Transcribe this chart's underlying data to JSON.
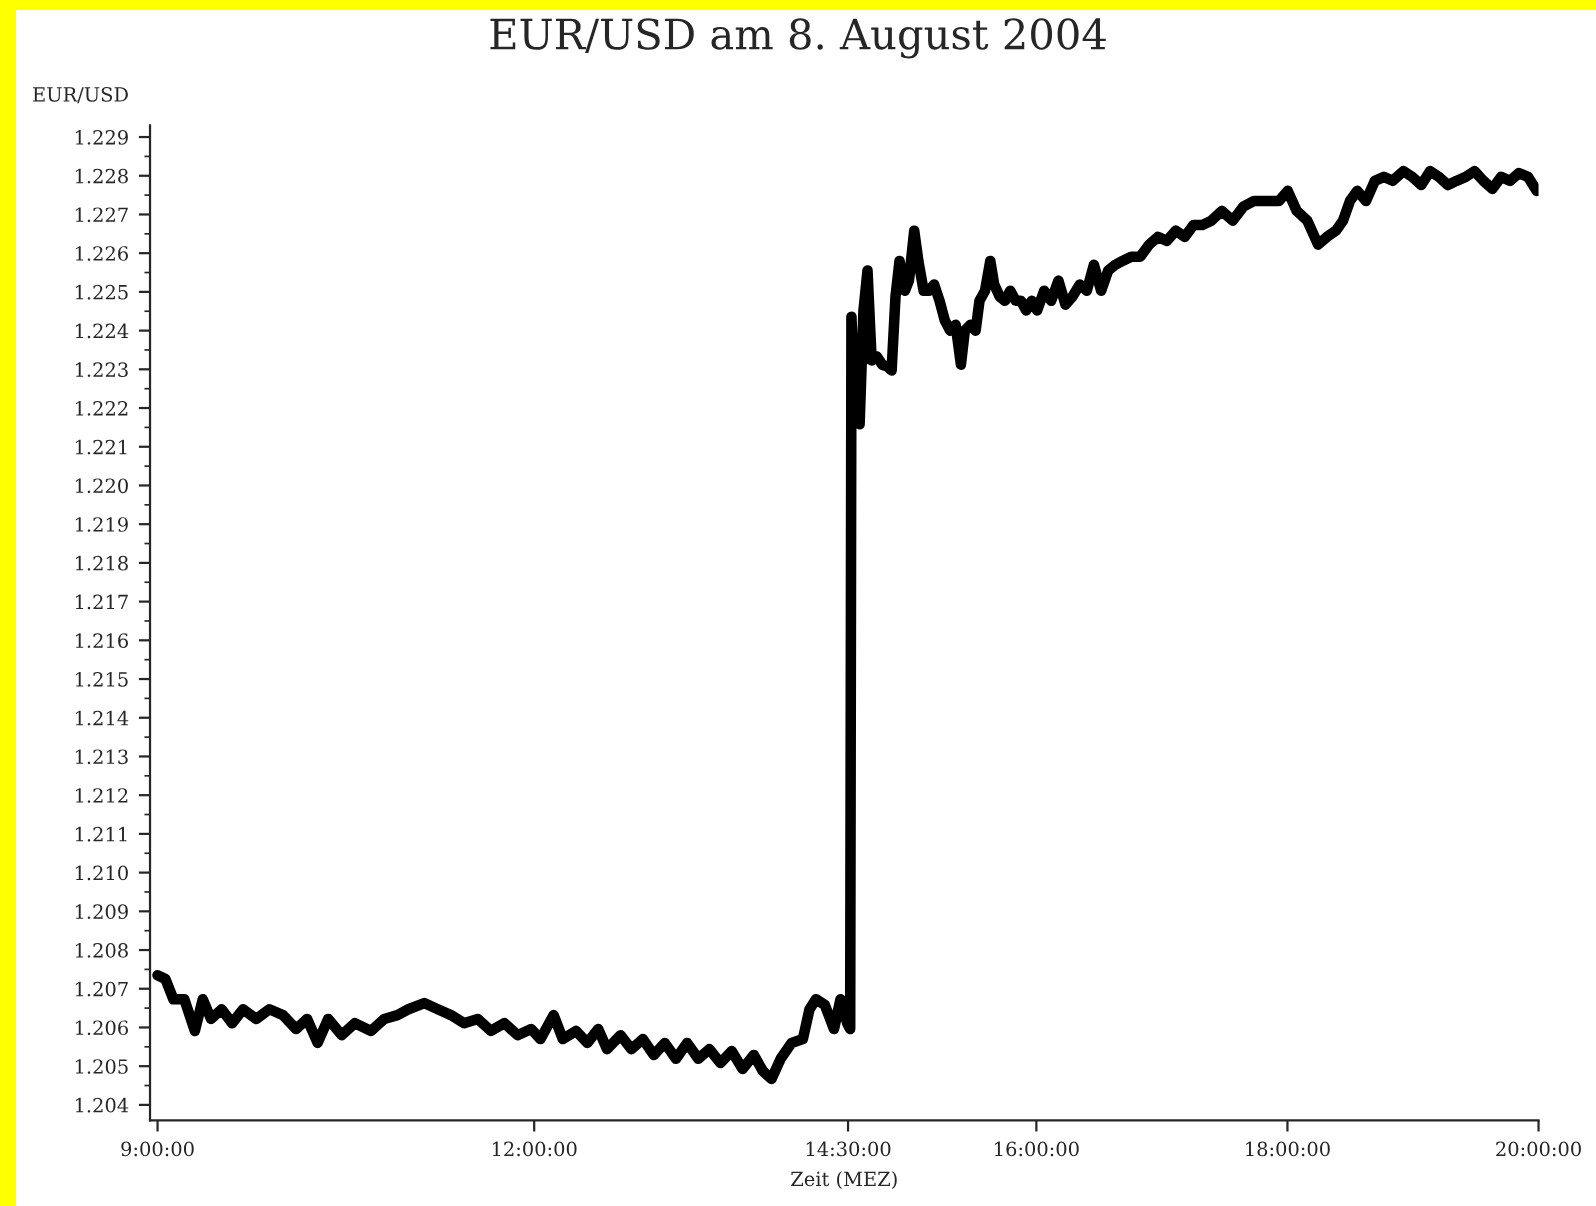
{
  "chart_data": {
    "type": "line",
    "title": "EUR/USD am 8. August 2004",
    "xlabel": "Zeit (MEZ)",
    "ylabel": "EUR/USD",
    "xlim": [
      8.94,
      20
    ],
    "xticks": [
      {
        "value": 9,
        "label": "9:00:00"
      },
      {
        "value": 12,
        "label": "12:00:00"
      },
      {
        "value": 14.5,
        "label": "14:30:00"
      },
      {
        "value": 16,
        "label": "16:00:00"
      },
      {
        "value": 18,
        "label": "18:00:00"
      },
      {
        "value": 20,
        "label": "20:00:00"
      }
    ],
    "ylim": [
      1.2036,
      1.2293
    ],
    "yticks": [
      1.204,
      1.205,
      1.206,
      1.207,
      1.208,
      1.209,
      {
        "value": 1.21,
        "label": "1.210"
      },
      1.211,
      1.212,
      1.213,
      1.214,
      1.215,
      1.216,
      1.217,
      1.218,
      1.219,
      {
        "value": 1.22,
        "label": "1.220"
      },
      1.221,
      1.222,
      1.223,
      1.224,
      1.225,
      1.226,
      1.227,
      1.228,
      1.229
    ],
    "grid": false,
    "marker": "none",
    "line_style": "solid",
    "series": [
      {
        "color": "#000000",
        "x": [
          9,
          9.063,
          9.126,
          9.213,
          9.297,
          9.36,
          9.426,
          9.51,
          9.594,
          9.681,
          9.786,
          9.891,
          9.999,
          10.104,
          10.191,
          10.275,
          10.359,
          10.467,
          10.572,
          10.701,
          10.806,
          10.911,
          10.998,
          11.124,
          11.232,
          11.337,
          11.442,
          11.55,
          11.655,
          11.763,
          11.868,
          11.976,
          12.05,
          12.155,
          12.228,
          12.333,
          12.423,
          12.51,
          12.58,
          12.688,
          12.775,
          12.865,
          12.953,
          13.04,
          13.13,
          13.218,
          13.308,
          13.395,
          13.483,
          13.573,
          13.66,
          13.75,
          13.82,
          13.89,
          13.963,
          14.05,
          14.14,
          14.193,
          14.245,
          14.315,
          14.388,
          14.44,
          14.493,
          14.517,
          14.527,
          14.56,
          14.592,
          14.623,
          14.655,
          14.688,
          14.73,
          14.772,
          14.815,
          14.847,
          14.878,
          14.91,
          14.953,
          14.985,
          15.027,
          15.06,
          15.102,
          15.144,
          15.186,
          15.229,
          15.271,
          15.313,
          15.357,
          15.399,
          15.43,
          15.474,
          15.516,
          15.547,
          15.591,
          15.633,
          15.664,
          15.708,
          15.75,
          15.792,
          15.835,
          15.877,
          15.919,
          15.963,
          16.006,
          16.062,
          16.118,
          16.176,
          16.232,
          16.288,
          16.346,
          16.402,
          16.458,
          16.516,
          16.572,
          16.628,
          16.686,
          16.756,
          16.828,
          16.898,
          16.968,
          17.04,
          17.11,
          17.182,
          17.252,
          17.322,
          17.394,
          17.478,
          17.564,
          17.648,
          17.734,
          17.818,
          17.932,
          18.002,
          18.074,
          18.158,
          18.244,
          18.314,
          18.386,
          18.442,
          18.498,
          18.556,
          18.626,
          18.696,
          18.768,
          18.838,
          18.924,
          18.994,
          19.066,
          19.136,
          19.206,
          19.278,
          19.348,
          19.42,
          19.49,
          19.56,
          19.632,
          19.702,
          19.774,
          19.844,
          19.916,
          19.986
        ],
        "values": [
          1.20735,
          1.20725,
          1.20673,
          1.20673,
          1.20591,
          1.20673,
          1.20622,
          1.20647,
          1.20611,
          1.20647,
          1.20622,
          1.20647,
          1.20632,
          1.20596,
          1.20622,
          1.2056,
          1.20622,
          1.2058,
          1.20611,
          1.20591,
          1.20622,
          1.20632,
          1.20647,
          1.20663,
          1.20647,
          1.20632,
          1.20611,
          1.20622,
          1.20591,
          1.20611,
          1.2058,
          1.20596,
          1.2057,
          1.20632,
          1.2057,
          1.20591,
          1.2056,
          1.20596,
          1.20544,
          1.2058,
          1.20544,
          1.2057,
          1.20529,
          1.2056,
          1.20519,
          1.2056,
          1.20519,
          1.20544,
          1.20508,
          1.20539,
          1.20493,
          1.20529,
          1.20488,
          1.20467,
          1.20519,
          1.2056,
          1.2057,
          1.20647,
          1.20673,
          1.20658,
          1.20596,
          1.20673,
          1.20611,
          1.20596,
          1.22436,
          1.22168,
          1.22158,
          1.22452,
          1.22555,
          1.22323,
          1.22333,
          1.22312,
          1.22307,
          1.22297,
          1.22488,
          1.2258,
          1.22503,
          1.22529,
          1.22658,
          1.2258,
          1.22503,
          1.22503,
          1.22519,
          1.22477,
          1.22426,
          1.224,
          1.22415,
          1.22312,
          1.224,
          1.22415,
          1.224,
          1.22477,
          1.22503,
          1.2258,
          1.22519,
          1.22488,
          1.22477,
          1.22503,
          1.22477,
          1.22477,
          1.22452,
          1.22477,
          1.22452,
          1.22503,
          1.22477,
          1.22529,
          1.22467,
          1.22488,
          1.22519,
          1.22503,
          1.2257,
          1.22503,
          1.22555,
          1.2257,
          1.2258,
          1.22591,
          1.22591,
          1.22622,
          1.22642,
          1.22632,
          1.22658,
          1.22642,
          1.22673,
          1.22673,
          1.22684,
          1.22709,
          1.22684,
          1.2272,
          1.22735,
          1.22735,
          1.22735,
          1.22761,
          1.22709,
          1.22684,
          1.22622,
          1.22642,
          1.22658,
          1.22684,
          1.22735,
          1.22761,
          1.22735,
          1.22787,
          1.22797,
          1.22787,
          1.22812,
          1.22797,
          1.22776,
          1.22812,
          1.22797,
          1.22776,
          1.22787,
          1.22797,
          1.22812,
          1.22787,
          1.22766,
          1.22797,
          1.22787,
          1.22807,
          1.22797,
          1.22761
        ]
      }
    ]
  }
}
